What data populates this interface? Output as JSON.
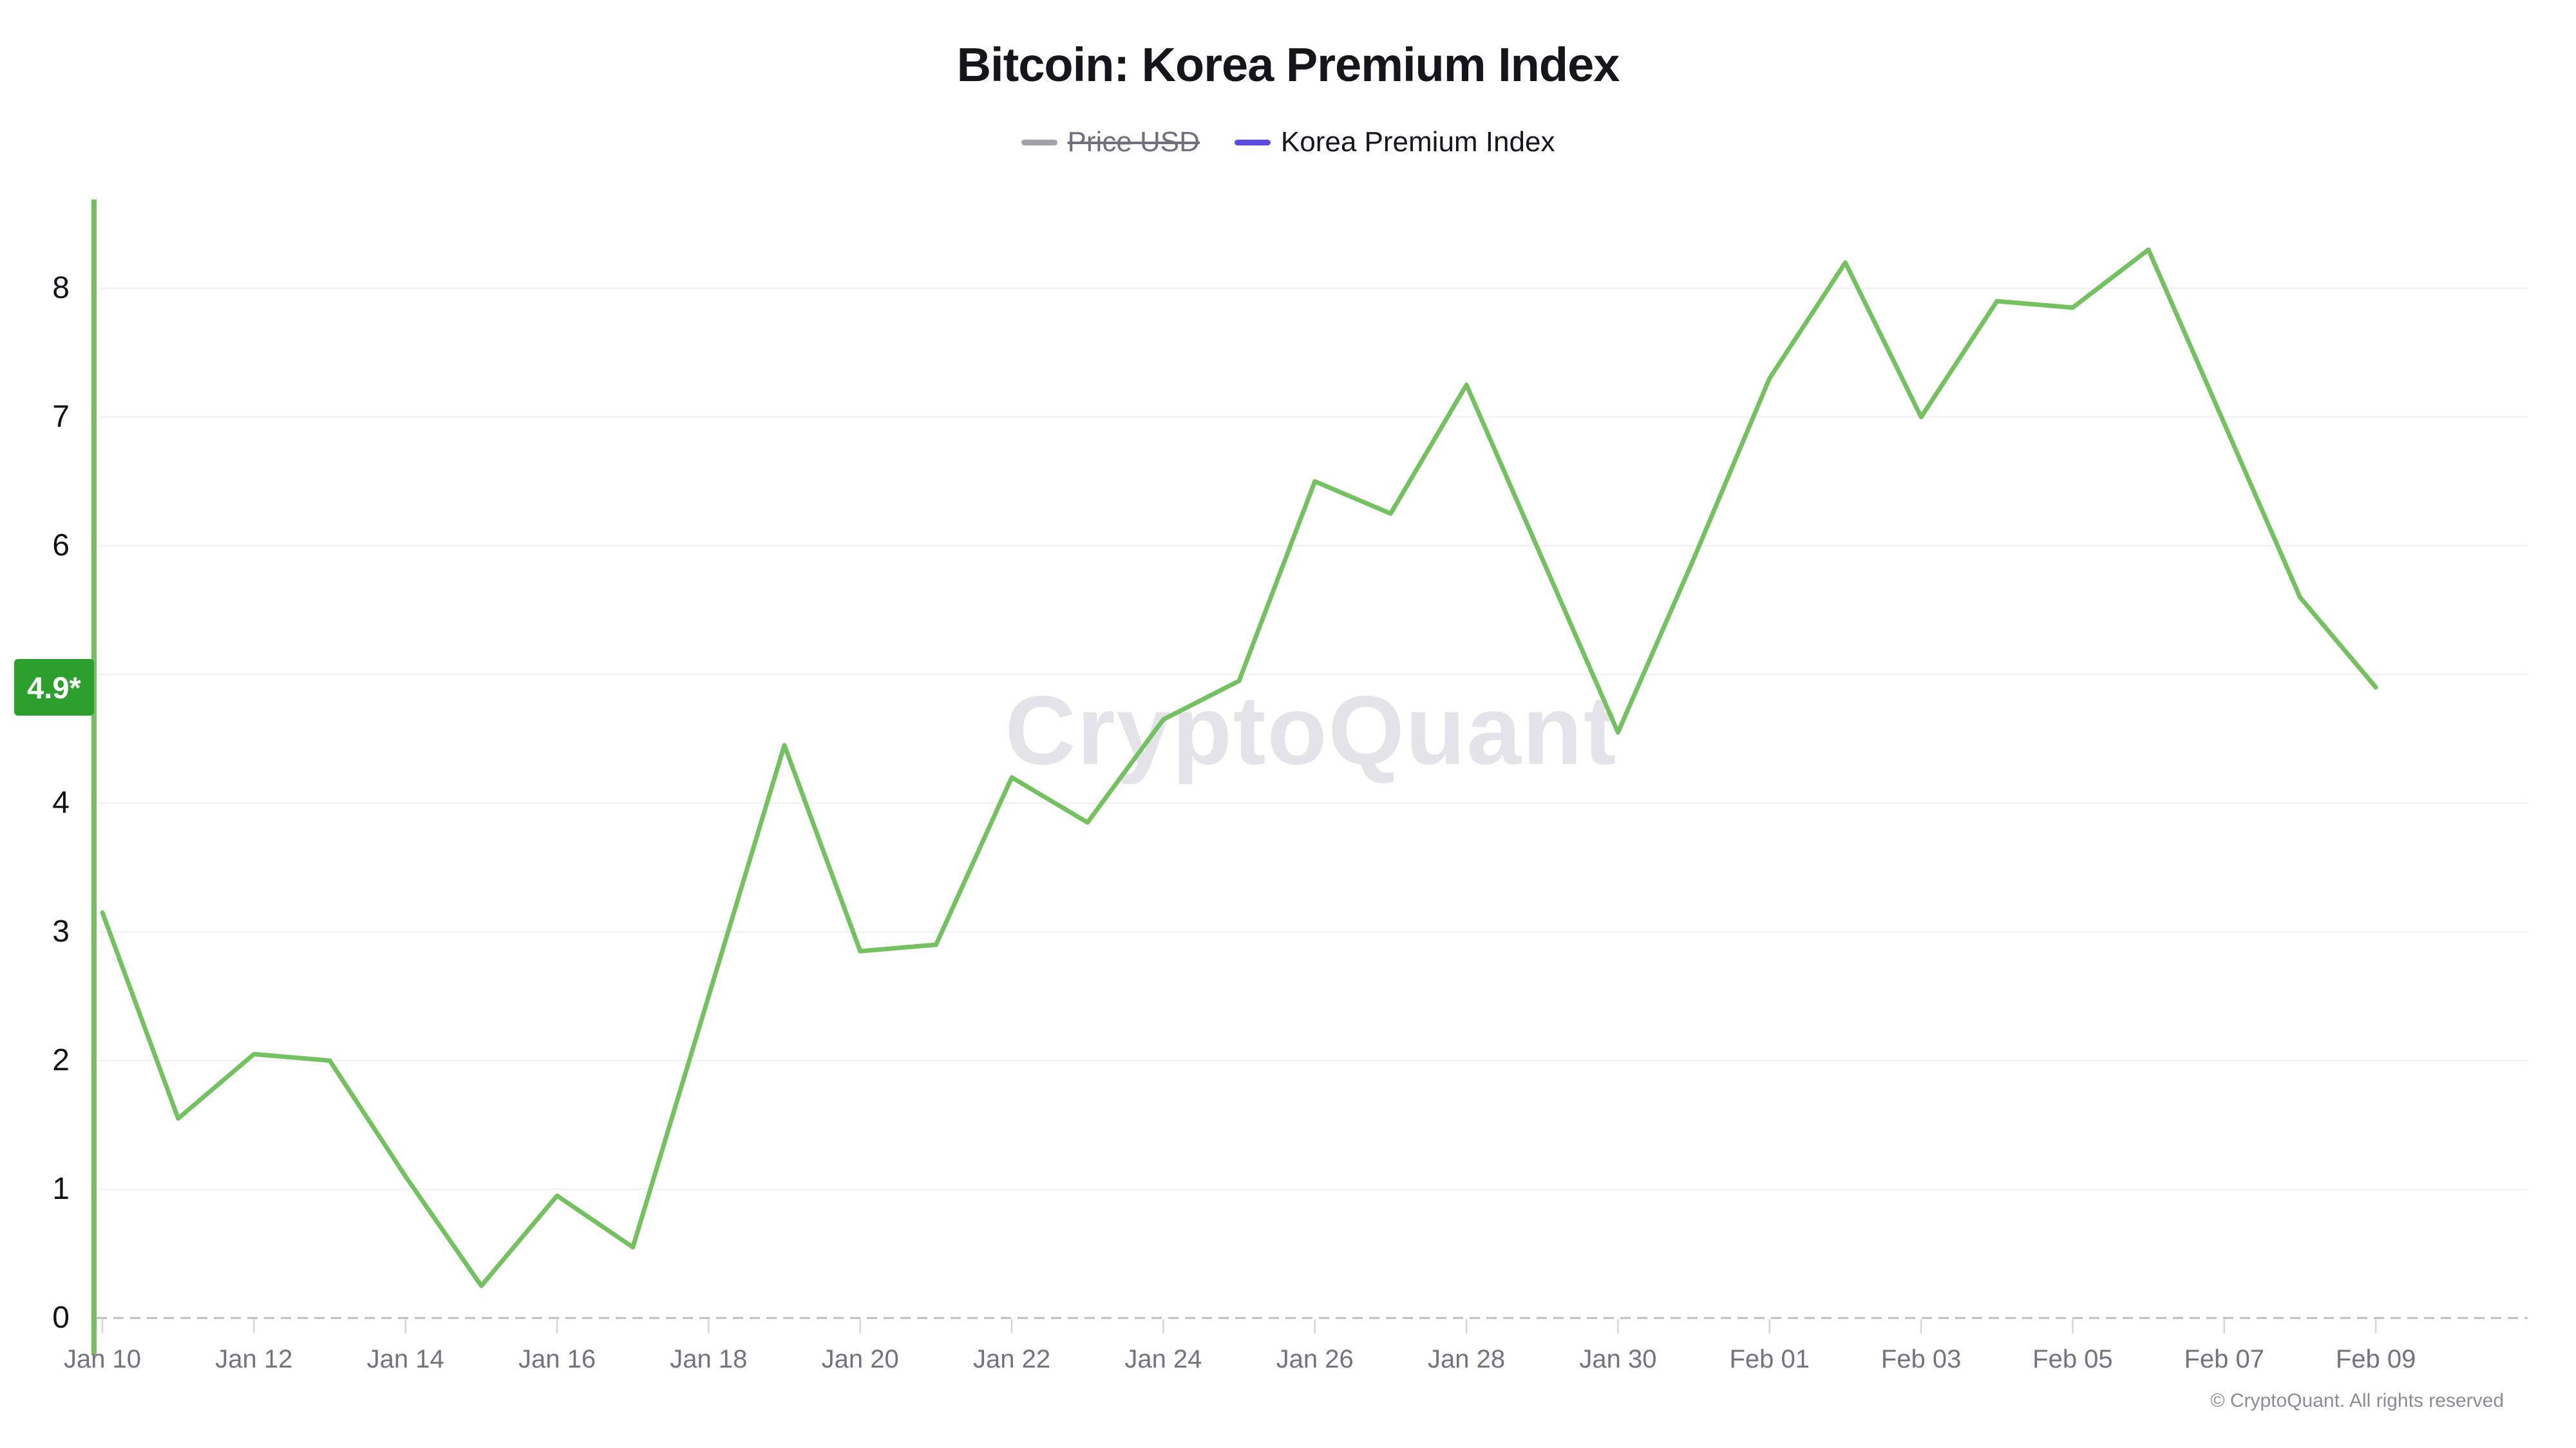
{
  "title": "Bitcoin: Korea Premium Index",
  "legend": {
    "items": [
      {
        "label": "Price USD",
        "color": "#a2a0ab",
        "disabled": true
      },
      {
        "label": "Korea Premium Index",
        "color": "#5b4ce0",
        "disabled": false
      }
    ]
  },
  "watermark": "CryptoQuant",
  "copyright": "© CryptoQuant. All rights reserved",
  "chart_data": {
    "type": "line",
    "title": "Bitcoin: Korea Premium Index",
    "legend_position": "top",
    "grid": true,
    "y_min": 0,
    "y_max": 8,
    "y_tick_labels": [
      "8",
      "7",
      "6",
      "4",
      "3",
      "2",
      "1",
      "0"
    ],
    "y_tick_values": [
      8,
      7,
      6,
      4,
      3,
      2,
      1,
      0
    ],
    "x_tick_labels": [
      "Jan 10",
      "Jan 12",
      "Jan 14",
      "Jan 16",
      "Jan 18",
      "Jan 20",
      "Jan 22",
      "Jan 24",
      "Jan 26",
      "Jan 28",
      "Jan 30",
      "Feb 01",
      "Feb 03",
      "Feb 05",
      "Feb 07",
      "Feb 09"
    ],
    "categories": [
      "Jan 10",
      "Jan 11",
      "Jan 12",
      "Jan 13",
      "Jan 14",
      "Jan 15",
      "Jan 16",
      "Jan 17",
      "Jan 18",
      "Jan 19",
      "Jan 20",
      "Jan 21",
      "Jan 22",
      "Jan 23",
      "Jan 24",
      "Jan 25",
      "Jan 26",
      "Jan 27",
      "Jan 28",
      "Jan 29",
      "Jan 30",
      "Jan 31",
      "Feb 01",
      "Feb 02",
      "Feb 03",
      "Feb 04",
      "Feb 05",
      "Feb 06",
      "Feb 07",
      "Feb 08",
      "Feb 09"
    ],
    "series": [
      {
        "name": "Korea Premium Index",
        "color": "#74c160",
        "values": [
          3.15,
          1.55,
          2.05,
          2.0,
          1.1,
          0.25,
          0.95,
          0.55,
          2.5,
          4.45,
          2.85,
          2.9,
          4.2,
          3.85,
          4.65,
          4.95,
          6.5,
          6.25,
          7.25,
          5.9,
          4.55,
          5.9,
          7.3,
          8.2,
          7.0,
          7.9,
          7.85,
          8.3,
          6.95,
          5.6,
          4.9
        ]
      }
    ],
    "latest": {
      "text": "4.9*",
      "value": 4.9,
      "badge_color": "#2d9f2d"
    },
    "axis_colors": {
      "y_axis_line": "#74c160",
      "gridline": "#f1f1f4",
      "zero_dashed_line": "#bcbbc5",
      "tick": "#d6d5dc"
    }
  }
}
